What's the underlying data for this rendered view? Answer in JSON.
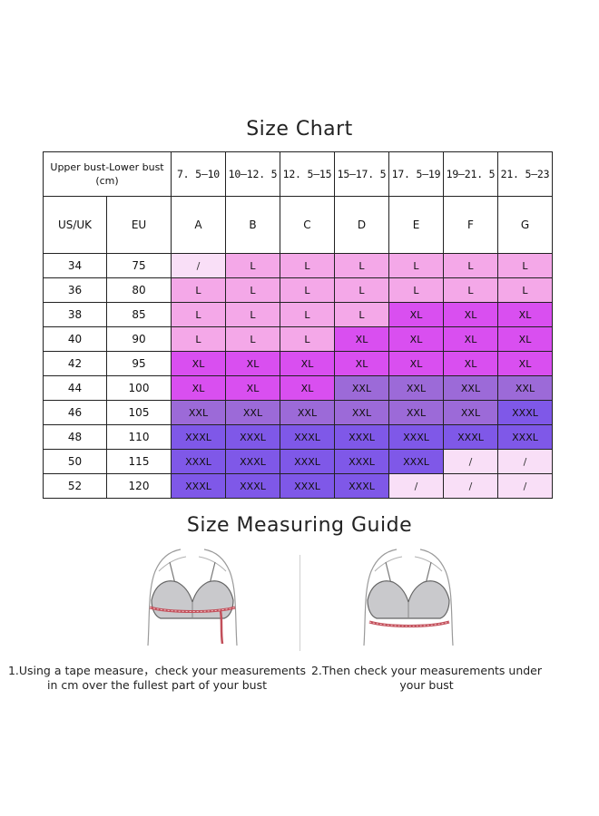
{
  "chart_title": "Size Chart",
  "guide_title": "Size Measuring Guide",
  "table": {
    "header_label": "Upper bust-Lower bust (cm)",
    "col_usuk": "US/UK",
    "col_eu": "EU",
    "ranges": [
      "7. 5–10",
      "10–12. 5",
      "12. 5–15",
      "15–17. 5",
      "17. 5–19",
      "19–21. 5",
      "21. 5–23"
    ],
    "cups": [
      "A",
      "B",
      "C",
      "D",
      "E",
      "F",
      "G"
    ],
    "rows": [
      {
        "usuk": "34",
        "eu": "75",
        "sizes": [
          "/",
          "L",
          "L",
          "L",
          "L",
          "L",
          "L"
        ]
      },
      {
        "usuk": "36",
        "eu": "80",
        "sizes": [
          "L",
          "L",
          "L",
          "L",
          "L",
          "L",
          "L"
        ]
      },
      {
        "usuk": "38",
        "eu": "85",
        "sizes": [
          "L",
          "L",
          "L",
          "L",
          "XL",
          "XL",
          "XL"
        ]
      },
      {
        "usuk": "40",
        "eu": "90",
        "sizes": [
          "L",
          "L",
          "L",
          "XL",
          "XL",
          "XL",
          "XL"
        ]
      },
      {
        "usuk": "42",
        "eu": "95",
        "sizes": [
          "XL",
          "XL",
          "XL",
          "XL",
          "XL",
          "XL",
          "XL"
        ]
      },
      {
        "usuk": "44",
        "eu": "100",
        "sizes": [
          "XL",
          "XL",
          "XL",
          "XXL",
          "XXL",
          "XXL",
          "XXL"
        ]
      },
      {
        "usuk": "46",
        "eu": "105",
        "sizes": [
          "XXL",
          "XXL",
          "XXL",
          "XXL",
          "XXL",
          "XXL",
          "XXXL"
        ]
      },
      {
        "usuk": "48",
        "eu": "110",
        "sizes": [
          "XXXL",
          "XXXL",
          "XXXL",
          "XXXL",
          "XXXL",
          "XXXL",
          "XXXL"
        ]
      },
      {
        "usuk": "50",
        "eu": "115",
        "sizes": [
          "XXXL",
          "XXXL",
          "XXXL",
          "XXXL",
          "XXXL",
          "/",
          "/"
        ]
      },
      {
        "usuk": "52",
        "eu": "120",
        "sizes": [
          "XXXL",
          "XXXL",
          "XXXL",
          "XXXL",
          "/",
          "/",
          "/"
        ]
      }
    ],
    "size_colors": {
      "/": "#f9dff7",
      "L": "#f4a8e8",
      "XL": "#d94ff0",
      "XXL": "#9c6ad8",
      "XXXL": "#7f58e8"
    }
  },
  "guide": {
    "step1": "1.Using a tape measure，check your measurements in cm over the fullest part of your bust",
    "step2": "2.Then check your measurements under your bust"
  }
}
